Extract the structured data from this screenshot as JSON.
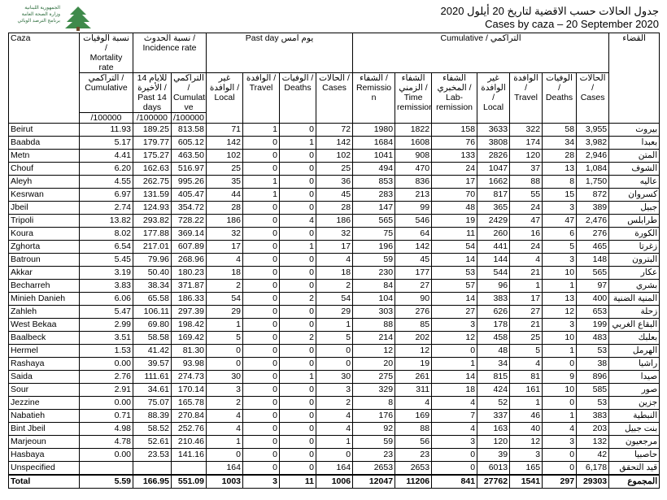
{
  "header": {
    "title_ar": "جدول الحالات حسب الاقضية لتاريخ 20 أيلول 2020",
    "title_en": "Cases by caza – 20 September 2020",
    "logo": [
      "الجمهورية اللبنانية",
      "وزارة الصحة العامة",
      "برنامج الترصد الوبائي"
    ]
  },
  "table": {
    "top": [
      "Caza",
      "نسبة الوفيات /\nMortality\nrate",
      "نسبة الحدوث /\nIncidence rate",
      "Past day  يوم امس",
      "Cumulative / التراكمي",
      "القضاء"
    ],
    "sub": [
      "التراكمي /\nCumulative",
      "للايام 14\nالأخيرة /\nPast 14\ndays",
      "التراكمي /\nCumulati\nve",
      "غير الوافدة /\nLocal",
      "الوافدة /\nTravel",
      "الوفيات /\nDeaths",
      "الحالات /\nCases",
      "الشفاء /\nRemissio\nn",
      "الشفاء\nالزمني /\nTime\nremission",
      "الشفاء\nالمخبري /\nLab-\nremission",
      "غير الوافدة /\nLocal",
      "الوافدة /\nTravel",
      "الوفيات /\nDeaths",
      "الحالات /\nCases"
    ],
    "units": [
      "/100000",
      "/100000",
      "/100000"
    ],
    "rows": [
      [
        "Beirut",
        "11.93",
        "189.25",
        "813.58",
        "71",
        "1",
        "0",
        "72",
        "1980",
        "1822",
        "158",
        "3633",
        "322",
        "58",
        "3,955",
        "بيروت"
      ],
      [
        "Baabda",
        "5.17",
        "179.77",
        "605.12",
        "142",
        "0",
        "1",
        "142",
        "1684",
        "1608",
        "76",
        "3808",
        "174",
        "34",
        "3,982",
        "بعبدا"
      ],
      [
        "Metn",
        "4.41",
        "175.27",
        "463.50",
        "102",
        "0",
        "0",
        "102",
        "1041",
        "908",
        "133",
        "2826",
        "120",
        "28",
        "2,946",
        "المتن"
      ],
      [
        "Chouf",
        "6.20",
        "162.63",
        "516.97",
        "25",
        "0",
        "0",
        "25",
        "494",
        "470",
        "24",
        "1047",
        "37",
        "13",
        "1,084",
        "الشوف"
      ],
      [
        "Aleyh",
        "4.55",
        "262.75",
        "995.26",
        "35",
        "1",
        "0",
        "36",
        "853",
        "836",
        "17",
        "1662",
        "88",
        "8",
        "1,750",
        "عاليه"
      ],
      [
        "Kesrwan",
        "6.97",
        "131.59",
        "405.47",
        "44",
        "1",
        "0",
        "45",
        "283",
        "213",
        "70",
        "817",
        "55",
        "15",
        "872",
        "كسروان"
      ],
      [
        "Jbeil",
        "2.74",
        "124.93",
        "354.72",
        "28",
        "0",
        "0",
        "28",
        "147",
        "99",
        "48",
        "365",
        "24",
        "3",
        "389",
        "جبيل"
      ],
      [
        "Tripoli",
        "13.82",
        "293.82",
        "728.22",
        "186",
        "0",
        "4",
        "186",
        "565",
        "546",
        "19",
        "2429",
        "47",
        "47",
        "2,476",
        "طرابلس"
      ],
      [
        "Koura",
        "8.02",
        "177.88",
        "369.14",
        "32",
        "0",
        "0",
        "32",
        "75",
        "64",
        "11",
        "260",
        "16",
        "6",
        "276",
        "الكورة"
      ],
      [
        "Zghorta",
        "6.54",
        "217.01",
        "607.89",
        "17",
        "0",
        "1",
        "17",
        "196",
        "142",
        "54",
        "441",
        "24",
        "5",
        "465",
        "زغرتا"
      ],
      [
        "Batroun",
        "5.45",
        "79.96",
        "268.96",
        "4",
        "0",
        "0",
        "4",
        "59",
        "45",
        "14",
        "144",
        "4",
        "3",
        "148",
        "البترون"
      ],
      [
        "Akkar",
        "3.19",
        "50.40",
        "180.23",
        "18",
        "0",
        "0",
        "18",
        "230",
        "177",
        "53",
        "544",
        "21",
        "10",
        "565",
        "عكار"
      ],
      [
        "Becharreh",
        "3.83",
        "38.34",
        "371.87",
        "2",
        "0",
        "0",
        "2",
        "84",
        "27",
        "57",
        "96",
        "1",
        "1",
        "97",
        "بشري"
      ],
      [
        "Minieh Danieh",
        "6.06",
        "65.58",
        "186.33",
        "54",
        "0",
        "2",
        "54",
        "104",
        "90",
        "14",
        "383",
        "17",
        "13",
        "400",
        "المنية الضنية"
      ],
      [
        "Zahleh",
        "5.47",
        "106.11",
        "297.39",
        "29",
        "0",
        "0",
        "29",
        "303",
        "276",
        "27",
        "626",
        "27",
        "12",
        "653",
        "زحلة"
      ],
      [
        "West Bekaa",
        "2.99",
        "69.80",
        "198.42",
        "1",
        "0",
        "0",
        "1",
        "88",
        "85",
        "3",
        "178",
        "21",
        "3",
        "199",
        "البقاع الغربي"
      ],
      [
        "Baalbeck",
        "3.51",
        "58.58",
        "169.42",
        "5",
        "0",
        "2",
        "5",
        "214",
        "202",
        "12",
        "458",
        "25",
        "10",
        "483",
        "بعلبك"
      ],
      [
        "Hermel",
        "1.53",
        "41.42",
        "81.30",
        "0",
        "0",
        "0",
        "0",
        "12",
        "12",
        "0",
        "48",
        "5",
        "1",
        "53",
        "الهرمل"
      ],
      [
        "Rashaya",
        "0.00",
        "39.57",
        "93.98",
        "0",
        "0",
        "0",
        "0",
        "20",
        "19",
        "1",
        "34",
        "4",
        "0",
        "38",
        "راشيا"
      ],
      [
        "Saida",
        "2.76",
        "111.61",
        "274.73",
        "30",
        "0",
        "1",
        "30",
        "275",
        "261",
        "14",
        "815",
        "81",
        "9",
        "896",
        "صيدا"
      ],
      [
        "Sour",
        "2.91",
        "34.61",
        "170.14",
        "3",
        "0",
        "0",
        "3",
        "329",
        "311",
        "18",
        "424",
        "161",
        "10",
        "585",
        "صور"
      ],
      [
        "Jezzine",
        "0.00",
        "75.07",
        "165.78",
        "2",
        "0",
        "0",
        "2",
        "8",
        "4",
        "4",
        "52",
        "1",
        "0",
        "53",
        "جزين"
      ],
      [
        "Nabatieh",
        "0.71",
        "88.39",
        "270.84",
        "4",
        "0",
        "0",
        "4",
        "176",
        "169",
        "7",
        "337",
        "46",
        "1",
        "383",
        "النبطية"
      ],
      [
        "Bint Jbeil",
        "4.98",
        "58.52",
        "252.76",
        "4",
        "0",
        "0",
        "4",
        "92",
        "88",
        "4",
        "163",
        "40",
        "4",
        "203",
        "بنت جبيل"
      ],
      [
        "Marjeoun",
        "4.78",
        "52.61",
        "210.46",
        "1",
        "0",
        "0",
        "1",
        "59",
        "56",
        "3",
        "120",
        "12",
        "3",
        "132",
        "مرجعيون"
      ],
      [
        "Hasbaya",
        "0.00",
        "23.53",
        "141.16",
        "0",
        "0",
        "0",
        "0",
        "23",
        "23",
        "0",
        "39",
        "3",
        "0",
        "42",
        "حاصبيا"
      ],
      [
        "Unspecified",
        null,
        null,
        null,
        "164",
        "0",
        "0",
        "164",
        "2653",
        "2653",
        "0",
        "6013",
        "165",
        "0",
        "6,178",
        "قيد التحقق"
      ],
      [
        "Total",
        "5.59",
        "166.95",
        "551.09",
        "1003",
        "3",
        "11",
        "1006",
        "12047",
        "11206",
        "841",
        "27762",
        "1541",
        "297",
        "29303",
        "المجموع"
      ]
    ]
  }
}
